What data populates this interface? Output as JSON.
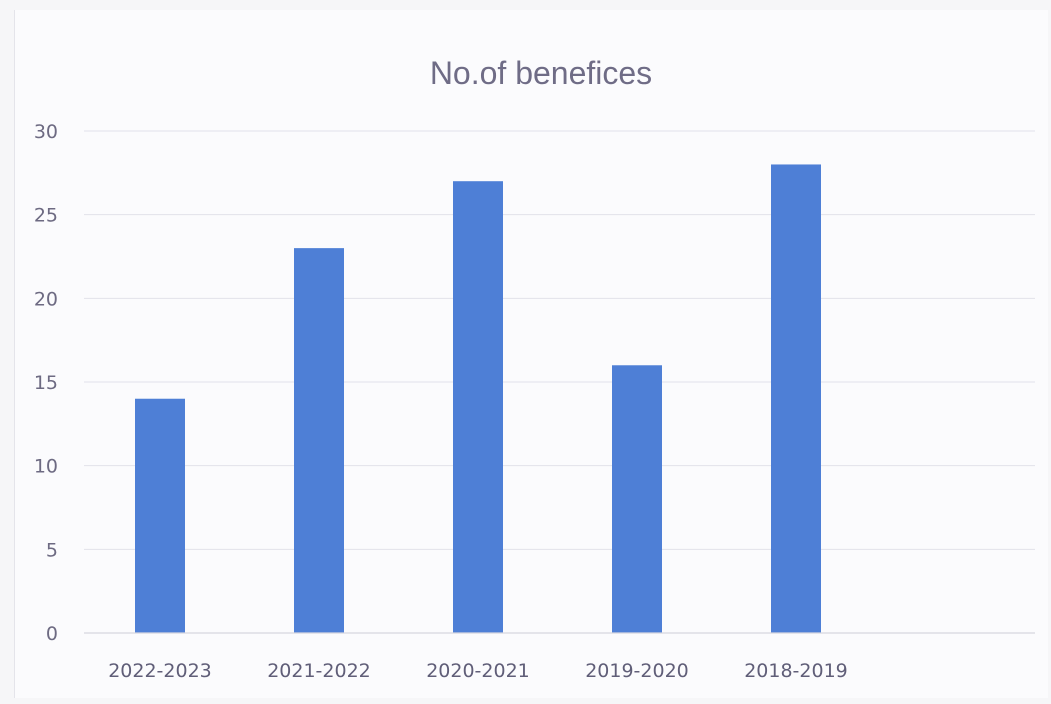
{
  "chart_data": {
    "type": "bar",
    "title": "No.of benefices",
    "xlabel": "",
    "ylabel": "",
    "categories": [
      "2022-2023",
      "2021-2022",
      "2020-2021",
      "2019-2020",
      "2018-2019"
    ],
    "values": [
      14,
      23,
      27,
      16,
      28
    ],
    "ylim": [
      0,
      30
    ],
    "yticks": [
      0,
      5,
      10,
      15,
      20,
      25,
      30
    ],
    "grid": true,
    "legend": "none",
    "bar_color": "#4e7fd6"
  }
}
